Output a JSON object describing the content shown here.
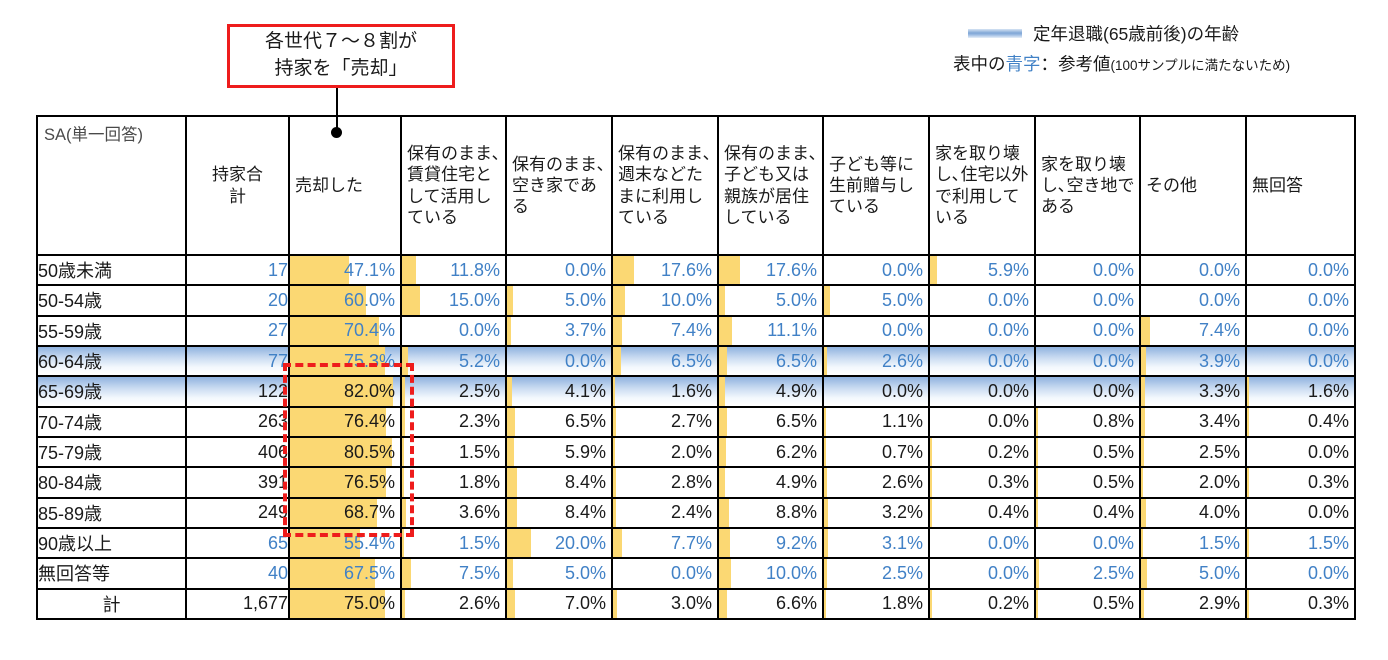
{
  "annotation": {
    "line1": "各世代７～８割が",
    "line2": "持家を「売却」"
  },
  "legend": {
    "band_label": "定年退職(65歳前後)の年齢",
    "note_prefix": "表中の",
    "note_blue": "青字",
    "note_mid": "：参考値",
    "note_suffix": "(100サンプルに満たないため)"
  },
  "colors": {
    "bar": "#fbd873",
    "blue_text": "#4181c6",
    "red": "#ee1c1c",
    "highlight_band_top": "#8fb2df"
  },
  "chart_data": {
    "type": "table",
    "corner_label": "SA(単一回答)",
    "columns": [
      "持家合計",
      "売却した",
      "保有のまま､賃貸住宅として活用している",
      "保有のまま､空き家である",
      "保有のまま､週末などたまに利用している",
      "保有のまま､子ども又は親族が居住している",
      "子ども等に生前贈与している",
      "家を取り壊し､住宅以外で利用している",
      "家を取り壊し､空き地である",
      "その他",
      "無回答"
    ],
    "bar_scale_max": 82.0,
    "rows": [
      {
        "label": "50歳未満",
        "total": "17",
        "blue": true,
        "highlight": false,
        "total_row": false,
        "values": [
          47.1,
          11.8,
          0.0,
          17.6,
          17.6,
          0.0,
          5.9,
          0.0,
          0.0,
          0.0
        ]
      },
      {
        "label": "50-54歳",
        "total": "20",
        "blue": true,
        "highlight": false,
        "total_row": false,
        "values": [
          60.0,
          15.0,
          5.0,
          10.0,
          5.0,
          5.0,
          0.0,
          0.0,
          0.0,
          0.0
        ]
      },
      {
        "label": "55-59歳",
        "total": "27",
        "blue": true,
        "highlight": false,
        "total_row": false,
        "values": [
          70.4,
          0.0,
          3.7,
          7.4,
          11.1,
          0.0,
          0.0,
          0.0,
          7.4,
          0.0
        ]
      },
      {
        "label": "60-64歳",
        "total": "77",
        "blue": true,
        "highlight": true,
        "total_row": false,
        "values": [
          75.3,
          5.2,
          0.0,
          6.5,
          6.5,
          2.6,
          0.0,
          0.0,
          3.9,
          0.0
        ]
      },
      {
        "label": "65-69歳",
        "total": "122",
        "blue": false,
        "highlight": true,
        "total_row": false,
        "values": [
          82.0,
          2.5,
          4.1,
          1.6,
          4.9,
          0.0,
          0.0,
          0.0,
          3.3,
          1.6
        ]
      },
      {
        "label": "70-74歳",
        "total": "263",
        "blue": false,
        "highlight": false,
        "total_row": false,
        "values": [
          76.4,
          2.3,
          6.5,
          2.7,
          6.5,
          1.1,
          0.0,
          0.8,
          3.4,
          0.4
        ]
      },
      {
        "label": "75-79歳",
        "total": "406",
        "blue": false,
        "highlight": false,
        "total_row": false,
        "values": [
          80.5,
          1.5,
          5.9,
          2.0,
          6.2,
          0.7,
          0.2,
          0.5,
          2.5,
          0.0
        ]
      },
      {
        "label": "80-84歳",
        "total": "391",
        "blue": false,
        "highlight": false,
        "total_row": false,
        "values": [
          76.5,
          1.8,
          8.4,
          2.8,
          4.9,
          2.6,
          0.3,
          0.5,
          2.0,
          0.3
        ]
      },
      {
        "label": "85-89歳",
        "total": "249",
        "blue": false,
        "highlight": false,
        "total_row": false,
        "values": [
          68.7,
          3.6,
          8.4,
          2.4,
          8.8,
          3.2,
          0.4,
          0.4,
          4.0,
          0.0
        ]
      },
      {
        "label": "90歳以上",
        "total": "65",
        "blue": true,
        "highlight": false,
        "total_row": false,
        "values": [
          55.4,
          1.5,
          20.0,
          7.7,
          9.2,
          3.1,
          0.0,
          0.0,
          1.5,
          1.5
        ]
      },
      {
        "label": "無回答等",
        "total": "40",
        "blue": true,
        "highlight": false,
        "total_row": false,
        "values": [
          67.5,
          7.5,
          5.0,
          0.0,
          10.0,
          2.5,
          0.0,
          2.5,
          5.0,
          0.0
        ]
      },
      {
        "label": "計",
        "total": "1,677",
        "blue": false,
        "highlight": false,
        "total_row": true,
        "values": [
          75.0,
          2.6,
          7.0,
          3.0,
          6.6,
          1.8,
          0.2,
          0.5,
          2.9,
          0.3
        ]
      }
    ]
  }
}
